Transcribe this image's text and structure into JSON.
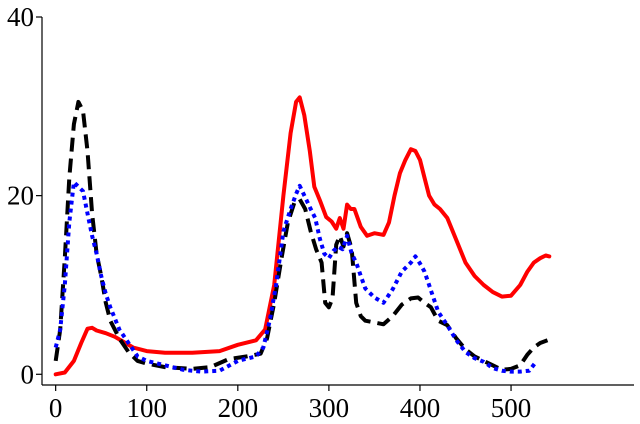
{
  "chart_data": {
    "type": "line",
    "title": "",
    "xlabel": "",
    "ylabel": "",
    "xlim": [
      -15,
      635
    ],
    "ylim": [
      -1.2,
      40
    ],
    "x_ticks": [
      0,
      100,
      200,
      300,
      400,
      500
    ],
    "y_ticks": [
      0,
      20,
      40
    ],
    "x_tick_labels": [
      "0",
      "100",
      "200",
      "300",
      "400",
      "500"
    ],
    "y_tick_labels": [
      "0",
      "20",
      "40"
    ],
    "grid": false,
    "legend": "none",
    "series": [
      {
        "color": "#ff0000",
        "style": "solid",
        "points": [
          [
            0,
            0
          ],
          [
            10,
            0.2
          ],
          [
            20,
            1.5
          ],
          [
            28,
            3.5
          ],
          [
            35,
            5.1
          ],
          [
            40,
            5.2
          ],
          [
            45,
            4.9
          ],
          [
            55,
            4.6
          ],
          [
            65,
            4.2
          ],
          [
            75,
            3.6
          ],
          [
            85,
            3.0
          ],
          [
            100,
            2.6
          ],
          [
            120,
            2.4
          ],
          [
            150,
            2.4
          ],
          [
            180,
            2.6
          ],
          [
            200,
            3.3
          ],
          [
            220,
            3.8
          ],
          [
            230,
            5.0
          ],
          [
            240,
            10
          ],
          [
            250,
            20
          ],
          [
            258,
            27
          ],
          [
            264,
            30.5
          ],
          [
            268,
            31
          ],
          [
            273,
            29
          ],
          [
            279,
            25
          ],
          [
            284,
            21
          ],
          [
            290,
            19.5
          ],
          [
            297,
            17.6
          ],
          [
            303,
            17.1
          ],
          [
            308,
            16.3
          ],
          [
            312,
            17.5
          ],
          [
            316,
            16.3
          ],
          [
            320,
            19
          ],
          [
            324,
            18.5
          ],
          [
            328,
            18.5
          ],
          [
            335,
            16.5
          ],
          [
            342,
            15.5
          ],
          [
            350,
            15.8
          ],
          [
            360,
            15.6
          ],
          [
            366,
            17
          ],
          [
            372,
            20
          ],
          [
            378,
            22.5
          ],
          [
            384,
            24
          ],
          [
            390,
            25.2
          ],
          [
            395,
            25
          ],
          [
            400,
            24
          ],
          [
            405,
            22
          ],
          [
            410,
            20
          ],
          [
            416,
            19
          ],
          [
            422,
            18.5
          ],
          [
            430,
            17.5
          ],
          [
            440,
            15
          ],
          [
            450,
            12.5
          ],
          [
            460,
            11
          ],
          [
            470,
            10
          ],
          [
            480,
            9.2
          ],
          [
            490,
            8.7
          ],
          [
            500,
            8.8
          ],
          [
            510,
            10
          ],
          [
            518,
            11.5
          ],
          [
            525,
            12.5
          ],
          [
            532,
            13
          ],
          [
            538,
            13.3
          ],
          [
            542,
            13.2
          ]
        ]
      },
      {
        "color": "#000000",
        "style": "dashed",
        "points": [
          [
            0,
            1.5
          ],
          [
            5,
            5
          ],
          [
            10,
            13
          ],
          [
            15,
            22
          ],
          [
            20,
            28
          ],
          [
            25,
            30.5
          ],
          [
            30,
            29.5
          ],
          [
            35,
            25
          ],
          [
            40,
            18
          ],
          [
            45,
            13.5
          ],
          [
            50,
            11
          ],
          [
            55,
            8
          ],
          [
            60,
            6
          ],
          [
            70,
            4
          ],
          [
            80,
            2.5
          ],
          [
            90,
            1.5
          ],
          [
            100,
            1.2
          ],
          [
            120,
            0.8
          ],
          [
            150,
            0.6
          ],
          [
            170,
            0.8
          ],
          [
            190,
            1.7
          ],
          [
            210,
            2.0
          ],
          [
            225,
            2.3
          ],
          [
            232,
            4
          ],
          [
            240,
            8
          ],
          [
            248,
            13
          ],
          [
            255,
            17
          ],
          [
            262,
            19.2
          ],
          [
            268,
            19.6
          ],
          [
            274,
            18.5
          ],
          [
            280,
            16
          ],
          [
            286,
            14
          ],
          [
            292,
            12.5
          ],
          [
            296,
            8
          ],
          [
            300,
            7.5
          ],
          [
            304,
            8.5
          ],
          [
            308,
            14.5
          ],
          [
            312,
            15.5
          ],
          [
            316,
            14.3
          ],
          [
            320,
            15.8
          ],
          [
            325,
            14
          ],
          [
            330,
            8
          ],
          [
            335,
            6.5
          ],
          [
            340,
            6
          ],
          [
            350,
            5.8
          ],
          [
            360,
            5.6
          ],
          [
            370,
            6.5
          ],
          [
            380,
            7.8
          ],
          [
            390,
            8.5
          ],
          [
            398,
            8.6
          ],
          [
            405,
            8
          ],
          [
            412,
            7.5
          ],
          [
            420,
            6
          ],
          [
            430,
            5.5
          ],
          [
            440,
            4
          ],
          [
            450,
            2.8
          ],
          [
            460,
            2
          ],
          [
            470,
            1.5
          ],
          [
            480,
            1
          ],
          [
            490,
            0.5
          ],
          [
            500,
            0.6
          ],
          [
            510,
            1
          ],
          [
            518,
            2.2
          ],
          [
            525,
            3
          ],
          [
            532,
            3.5
          ],
          [
            540,
            3.8
          ]
        ]
      },
      {
        "color": "#0000ff",
        "style": "dotted",
        "points": [
          [
            0,
            3
          ],
          [
            5,
            5
          ],
          [
            10,
            10
          ],
          [
            15,
            17
          ],
          [
            20,
            21.5
          ],
          [
            25,
            21
          ],
          [
            30,
            20.5
          ],
          [
            35,
            18
          ],
          [
            40,
            15.5
          ],
          [
            45,
            13.5
          ],
          [
            50,
            11
          ],
          [
            55,
            9
          ],
          [
            60,
            7.5
          ],
          [
            70,
            5
          ],
          [
            80,
            3.5
          ],
          [
            90,
            2
          ],
          [
            100,
            1.5
          ],
          [
            120,
            1
          ],
          [
            140,
            0.5
          ],
          [
            160,
            0.3
          ],
          [
            180,
            0.4
          ],
          [
            200,
            1.5
          ],
          [
            220,
            2
          ],
          [
            228,
            3
          ],
          [
            235,
            6
          ],
          [
            242,
            10
          ],
          [
            250,
            16
          ],
          [
            258,
            18.5
          ],
          [
            264,
            20.2
          ],
          [
            268,
            21.1
          ],
          [
            274,
            19.8
          ],
          [
            280,
            18.5
          ],
          [
            285,
            17.5
          ],
          [
            290,
            15.2
          ],
          [
            295,
            13.5
          ],
          [
            300,
            13
          ],
          [
            305,
            13.8
          ],
          [
            310,
            14.3
          ],
          [
            315,
            14
          ],
          [
            320,
            15.5
          ],
          [
            325,
            13.5
          ],
          [
            330,
            12.5
          ],
          [
            335,
            11
          ],
          [
            340,
            9.6
          ],
          [
            350,
            8.6
          ],
          [
            360,
            8
          ],
          [
            370,
            9.5
          ],
          [
            380,
            11.5
          ],
          [
            390,
            12.5
          ],
          [
            395,
            13.2
          ],
          [
            400,
            12.4
          ],
          [
            405,
            11.5
          ],
          [
            410,
            10
          ],
          [
            420,
            7
          ],
          [
            430,
            5.5
          ],
          [
            440,
            3.8
          ],
          [
            450,
            2.5
          ],
          [
            460,
            1.8
          ],
          [
            470,
            1.4
          ],
          [
            480,
            0.7
          ],
          [
            490,
            0.4
          ],
          [
            500,
            0.3
          ],
          [
            510,
            0.3
          ],
          [
            520,
            0.4
          ],
          [
            526,
            1.2
          ]
        ]
      }
    ]
  }
}
